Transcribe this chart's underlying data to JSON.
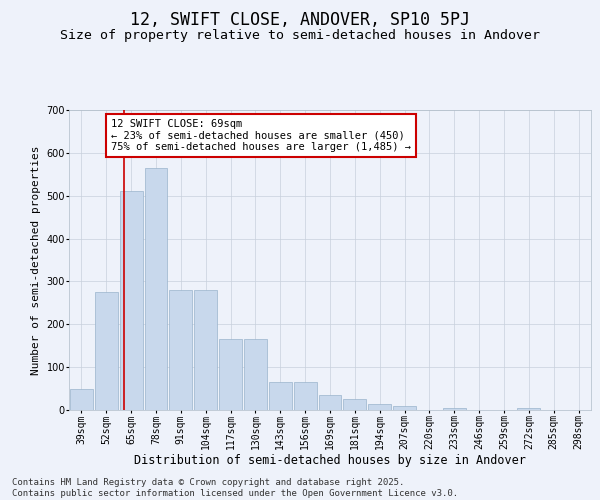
{
  "title": "12, SWIFT CLOSE, ANDOVER, SP10 5PJ",
  "subtitle": "Size of property relative to semi-detached houses in Andover",
  "xlabel": "Distribution of semi-detached houses by size in Andover",
  "ylabel": "Number of semi-detached properties",
  "categories": [
    "39sqm",
    "52sqm",
    "65sqm",
    "78sqm",
    "91sqm",
    "104sqm",
    "117sqm",
    "130sqm",
    "143sqm",
    "156sqm",
    "169sqm",
    "181sqm",
    "194sqm",
    "207sqm",
    "220sqm",
    "233sqm",
    "246sqm",
    "259sqm",
    "272sqm",
    "285sqm",
    "298sqm"
  ],
  "values": [
    50,
    275,
    510,
    565,
    280,
    280,
    165,
    165,
    65,
    65,
    35,
    25,
    15,
    10,
    0,
    5,
    0,
    0,
    5,
    0,
    0
  ],
  "bar_color": "#c8d8ec",
  "bar_edge_color": "#9ab4cc",
  "background_color": "#eef2fa",
  "grid_color": "#c8d0dc",
  "vline_color": "#cc0000",
  "vline_x": 1.72,
  "annotation_text": "12 SWIFT CLOSE: 69sqm\n← 23% of semi-detached houses are smaller (450)\n75% of semi-detached houses are larger (1,485) →",
  "annotation_box_color": "#ffffff",
  "annotation_box_edge": "#cc0000",
  "ylim": [
    0,
    700
  ],
  "yticks": [
    0,
    100,
    200,
    300,
    400,
    500,
    600,
    700
  ],
  "footer": "Contains HM Land Registry data © Crown copyright and database right 2025.\nContains public sector information licensed under the Open Government Licence v3.0.",
  "title_fontsize": 12,
  "subtitle_fontsize": 9.5,
  "xlabel_fontsize": 8.5,
  "ylabel_fontsize": 8,
  "tick_fontsize": 7,
  "annotation_fontsize": 7.5,
  "footer_fontsize": 6.5
}
